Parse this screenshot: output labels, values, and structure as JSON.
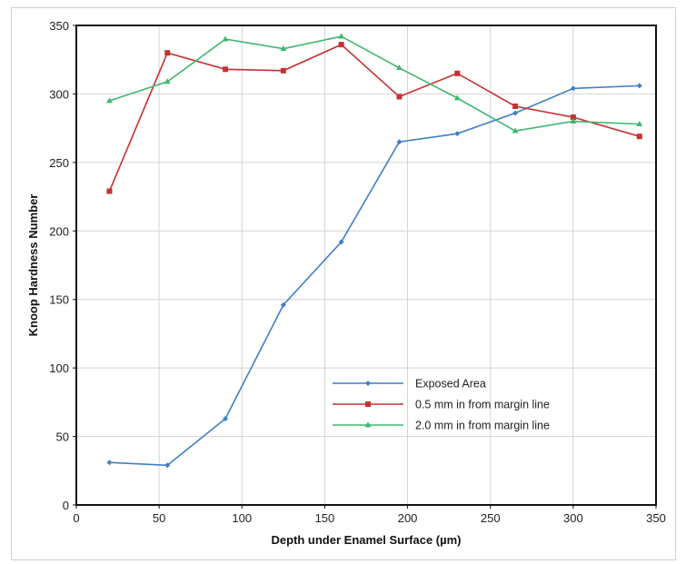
{
  "chart_data": {
    "type": "line",
    "title": "",
    "xlabel": "Depth under Enamel Surface (µm)",
    "ylabel": "Knoop Hardness Number",
    "xlim": [
      0,
      350
    ],
    "ylim": [
      0,
      350
    ],
    "x_ticks": [
      0,
      50,
      100,
      150,
      200,
      250,
      300,
      350
    ],
    "y_ticks": [
      0,
      50,
      100,
      150,
      200,
      250,
      300,
      350
    ],
    "x_tick_labels": [
      "0",
      "50",
      "100",
      "150",
      "200",
      "250",
      "300",
      "350"
    ],
    "y_tick_labels": [
      "0",
      "50",
      "100",
      "150",
      "200",
      "250",
      "300",
      "350"
    ],
    "grid": true,
    "legend_position": "lower-right",
    "series": [
      {
        "name": "Exposed Area",
        "color": "#3f7fc6",
        "marker": "diamond",
        "x": [
          20,
          55,
          90,
          125,
          160,
          195,
          230,
          265,
          300,
          340
        ],
        "y": [
          31,
          29,
          63,
          146,
          192,
          265,
          271,
          286,
          304,
          306
        ]
      },
      {
        "name": "0.5 mm in from margin line",
        "color": "#c8302f",
        "marker": "square",
        "x": [
          20,
          55,
          90,
          125,
          160,
          195,
          230,
          265,
          300,
          340
        ],
        "y": [
          229,
          330,
          318,
          317,
          336,
          298,
          315,
          291,
          283,
          269
        ]
      },
      {
        "name": "2.0 mm in from margin line",
        "color": "#3db76f",
        "marker": "triangle",
        "x": [
          20,
          55,
          90,
          125,
          160,
          195,
          230,
          265,
          300,
          340
        ],
        "y": [
          295,
          309,
          340,
          333,
          342,
          319,
          297,
          273,
          280,
          278
        ]
      }
    ]
  }
}
